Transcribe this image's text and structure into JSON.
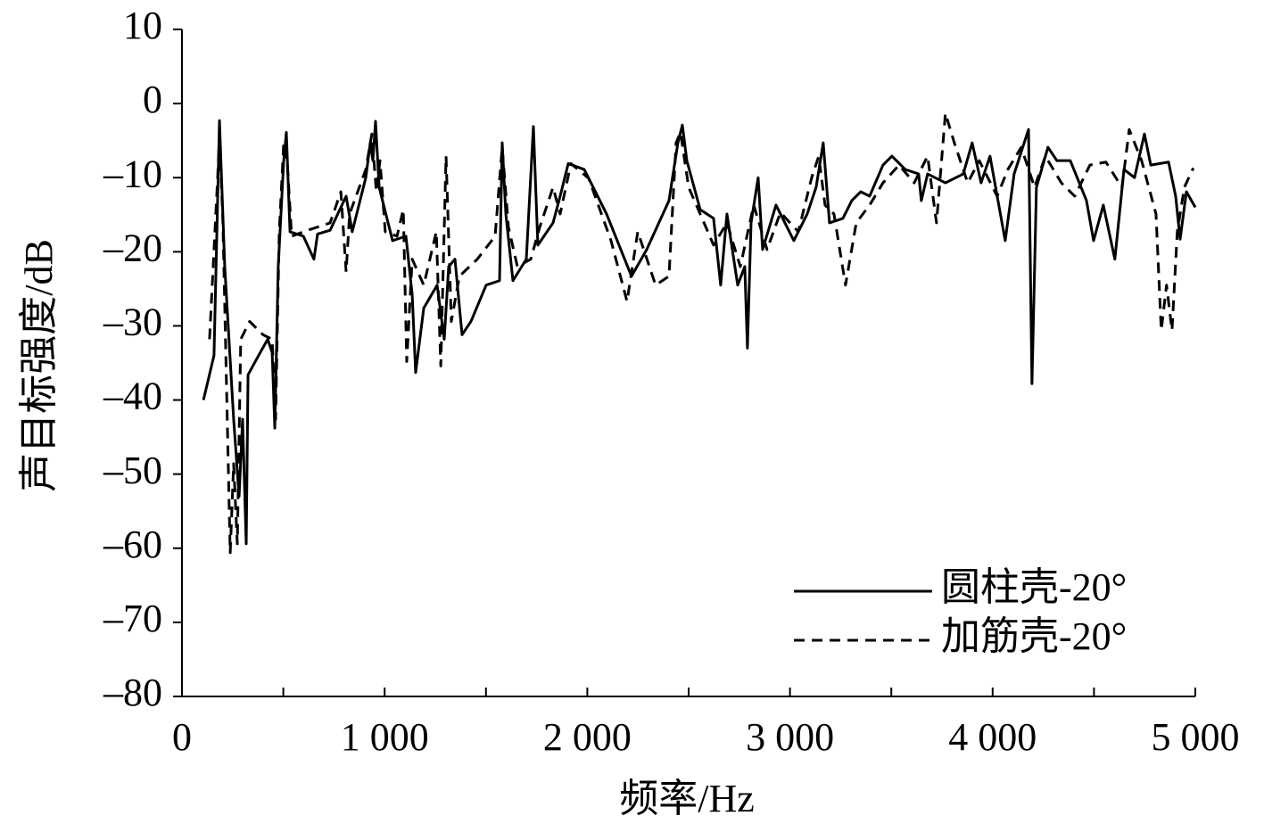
{
  "chart_data": {
    "type": "line",
    "x_label": "频率/Hz",
    "y_label": "声目标强度/dB",
    "xlim": [
      0,
      5000
    ],
    "xticks": [
      {
        "value": 0,
        "label": "0"
      },
      {
        "value": 1000,
        "label": "1 000"
      },
      {
        "value": 2000,
        "label": "2 000"
      },
      {
        "value": 3000,
        "label": "3 000"
      },
      {
        "value": 4000,
        "label": "4 000"
      },
      {
        "value": 5000,
        "label": "5 000"
      }
    ],
    "xminor_ticks": [
      500,
      1500,
      2500,
      3500,
      4500
    ],
    "ylim": [
      -80,
      10
    ],
    "yticks": [
      {
        "value": -80,
        "label": "–80"
      },
      {
        "value": -70,
        "label": "–70"
      },
      {
        "value": -60,
        "label": "–60"
      },
      {
        "value": -50,
        "label": "–50"
      },
      {
        "value": -40,
        "label": "–40"
      },
      {
        "value": -30,
        "label": "–30"
      },
      {
        "value": -20,
        "label": "–20"
      },
      {
        "value": -10,
        "label": "–10"
      },
      0,
      10
    ],
    "grid": false,
    "legend": "lower right",
    "series": [
      {
        "name": "圆柱壳-20°",
        "color": "#000000",
        "linestyle": "solid",
        "x": [
          106,
          158,
          185,
          211,
          255,
          282,
          299,
          317,
          326,
          378,
          423,
          445,
          458,
          475,
          502,
          515,
          533,
          599,
          651,
          669,
          731,
          810,
          840,
          907,
          929,
          942,
          955,
          973,
          1039,
          1105,
          1136,
          1153,
          1193,
          1259,
          1294,
          1316,
          1347,
          1382,
          1426,
          1501,
          1567,
          1580,
          1598,
          1633,
          1699,
          1734,
          1756,
          1831,
          1866,
          1906,
          1985,
          2095,
          2218,
          2293,
          2403,
          2447,
          2469,
          2491,
          2557,
          2623,
          2658,
          2689,
          2742,
          2777,
          2790,
          2808,
          2843,
          2865,
          2931,
          2975,
          3019,
          3085,
          3129,
          3164,
          3195,
          3261,
          3305,
          3349,
          3393,
          3459,
          3503,
          3569,
          3635,
          3648,
          3679,
          3767,
          3855,
          3899,
          3943,
          3987,
          4062,
          4106,
          4177,
          4194,
          4216,
          4273,
          4317,
          4383,
          4463,
          4498,
          4546,
          4603,
          4648,
          4700,
          4749,
          4780,
          4868,
          4903,
          4925,
          4956,
          5000
        ],
        "values": [
          -40,
          -34,
          -2.3,
          -22,
          -42.6,
          -53,
          -42.6,
          -59.4,
          -36.6,
          -34,
          -31.8,
          -33.6,
          -43.8,
          -22,
          -7.7,
          -3.9,
          -17.3,
          -17.9,
          -21,
          -17.6,
          -17.1,
          -12.5,
          -17.3,
          -10,
          -5.3,
          -7.7,
          -2.4,
          -11.3,
          -18.5,
          -17.9,
          -25.8,
          -36.3,
          -27.6,
          -24.5,
          -31.8,
          -22,
          -21,
          -31.2,
          -29.4,
          -24.5,
          -23.9,
          -5.3,
          -14.9,
          -23.9,
          -21,
          -3.1,
          -19.1,
          -16.1,
          -12.5,
          -8.1,
          -8.9,
          -14.9,
          -23.3,
          -19.7,
          -13.1,
          -5.3,
          -2.9,
          -7.7,
          -14.3,
          -15.5,
          -24.5,
          -14.9,
          -24.5,
          -22,
          -33,
          -16.1,
          -10,
          -19.7,
          -13.7,
          -16.1,
          -18.5,
          -14.9,
          -11.3,
          -5.3,
          -16.1,
          -15.5,
          -13.1,
          -11.9,
          -12.5,
          -8.3,
          -7.1,
          -8.9,
          -9.5,
          -13.1,
          -9.5,
          -10.7,
          -9.5,
          -5.3,
          -10.7,
          -7.1,
          -18.5,
          -9.5,
          -3.5,
          -37.8,
          -11.3,
          -5.9,
          -7.7,
          -7.7,
          -13.1,
          -18.5,
          -13.7,
          -21,
          -8.9,
          -10,
          -4.1,
          -8.3,
          -7.9,
          -12.5,
          -18.3,
          -11.9,
          -14
        ]
      },
      {
        "name": "加筋壳-20°",
        "color": "#000000",
        "linestyle": "dashed",
        "x": [
          136,
          176,
          185,
          202,
          238,
          255,
          273,
          290,
          334,
          400,
          445,
          462,
          480,
          502,
          519,
          541,
          621,
          731,
          784,
          810,
          827,
          907,
          937,
          959,
          977,
          1003,
          1061,
          1092,
          1109,
          1136,
          1193,
          1255,
          1277,
          1303,
          1329,
          1369,
          1457,
          1545,
          1580,
          1611,
          1655,
          1721,
          1765,
          1831,
          1866,
          1919,
          2007,
          2117,
          2196,
          2249,
          2337,
          2403,
          2438,
          2460,
          2500,
          2557,
          2623,
          2689,
          2755,
          2821,
          2887,
          2953,
          3041,
          3107,
          3142,
          3173,
          3217,
          3274,
          3327,
          3393,
          3459,
          3538,
          3613,
          3679,
          3723,
          3767,
          3811,
          3877,
          3934,
          4022,
          4075,
          4141,
          4207,
          4260,
          4339,
          4405,
          4480,
          4559,
          4638,
          4674,
          4735,
          4806,
          4832,
          4858,
          4885,
          4911,
          4946,
          4990
        ],
        "values": [
          -31.8,
          -10,
          -4.1,
          -16.1,
          -60.6,
          -48.6,
          -59.4,
          -31.8,
          -29.4,
          -31.2,
          -31.8,
          -42.6,
          -17.3,
          -5.3,
          -7.7,
          -17.9,
          -17.1,
          -16.1,
          -11.9,
          -22.7,
          -14.9,
          -8.9,
          -4.1,
          -11.9,
          -7.7,
          -17.3,
          -17.9,
          -14.3,
          -34.8,
          -21,
          -24.5,
          -17.3,
          -35.4,
          -7.1,
          -29.4,
          -23.3,
          -21,
          -17.9,
          -5.9,
          -16.7,
          -22,
          -21,
          -16.7,
          -11.3,
          -14.9,
          -8.1,
          -10.1,
          -18.5,
          -26.7,
          -17.3,
          -24.5,
          -23.3,
          -5.3,
          -3.9,
          -11.3,
          -14.9,
          -19.1,
          -16.1,
          -22,
          -13.7,
          -19.7,
          -14.7,
          -17.3,
          -10,
          -7.1,
          -13.7,
          -14.9,
          -24.5,
          -16.1,
          -13.7,
          -10.7,
          -8.3,
          -10.7,
          -7.1,
          -16.1,
          -1.3,
          -5.3,
          -10.7,
          -7.7,
          -12.5,
          -8.9,
          -5.9,
          -11.3,
          -7.1,
          -10.7,
          -12.5,
          -8.3,
          -7.9,
          -11.3,
          -3.5,
          -7.7,
          -14.9,
          -30.6,
          -24.5,
          -30.6,
          -17.3,
          -11.3,
          -8.7
        ]
      }
    ]
  }
}
